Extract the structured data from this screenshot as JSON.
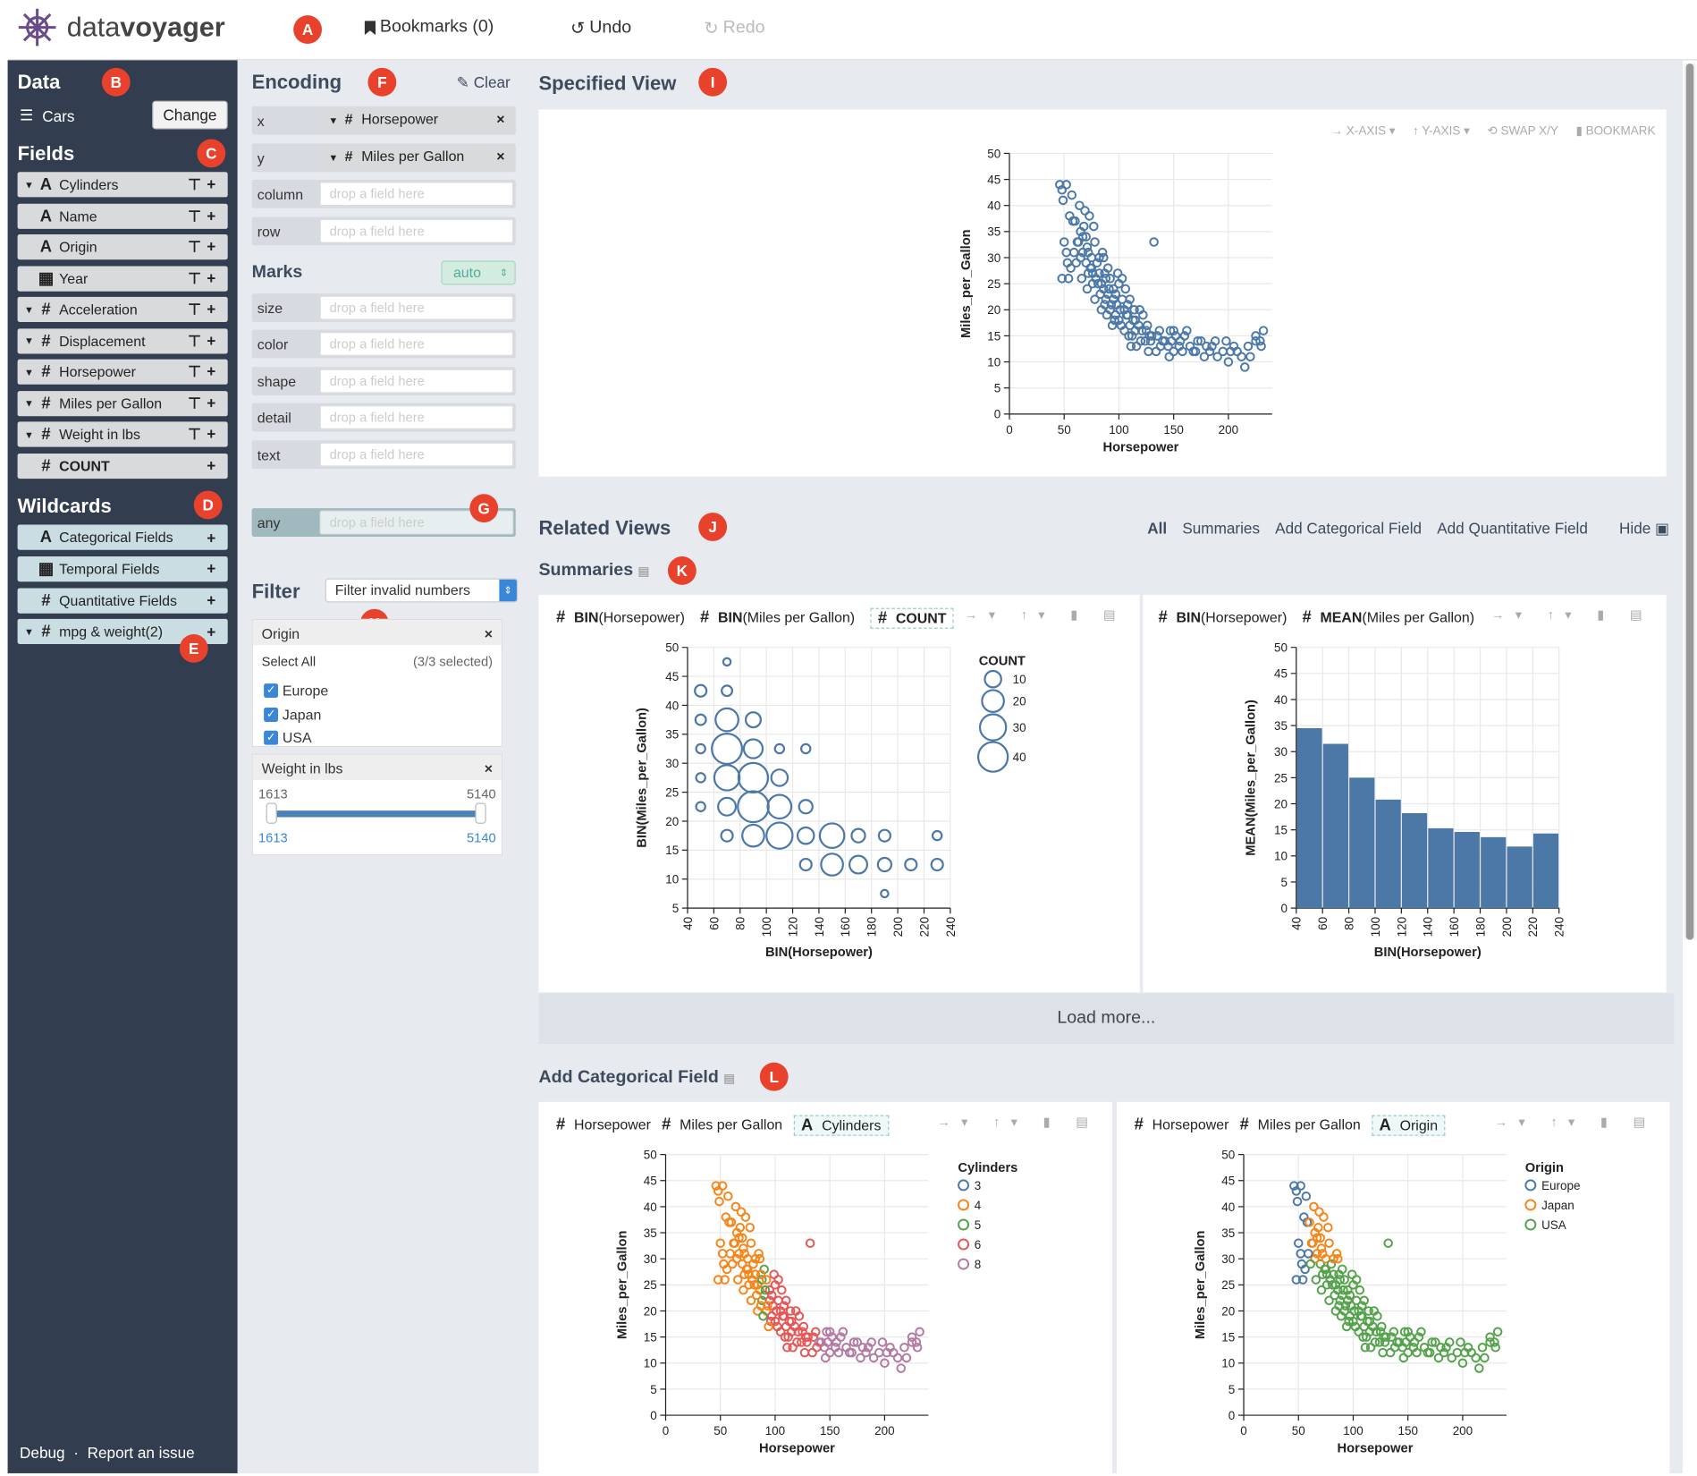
{
  "app": {
    "logo_prefix": "data",
    "logo_suffix": "voyager",
    "bookmarks": "Bookmarks (0)",
    "undo": "Undo",
    "redo": "Redo"
  },
  "badges": {
    "A": "A",
    "B": "B",
    "C": "C",
    "D": "D",
    "E": "E",
    "F": "F",
    "G": "G",
    "H": "H",
    "I": "I",
    "J": "J",
    "K": "K",
    "L": "L"
  },
  "data_panel": {
    "title": "Data",
    "dataset": "Cars",
    "change": "Change"
  },
  "fields_title": "Fields",
  "fields": [
    {
      "type": "A",
      "name": "Cylinders",
      "caret": true
    },
    {
      "type": "A",
      "name": "Name",
      "caret": false
    },
    {
      "type": "A",
      "name": "Origin",
      "caret": false
    },
    {
      "type": "cal",
      "name": "Year",
      "caret": false
    },
    {
      "type": "#",
      "name": "Acceleration",
      "caret": true
    },
    {
      "type": "#",
      "name": "Displacement",
      "caret": true
    },
    {
      "type": "#",
      "name": "Horsepower",
      "caret": true
    },
    {
      "type": "#",
      "name": "Miles per Gallon",
      "caret": true
    },
    {
      "type": "#",
      "name": "Weight in lbs",
      "caret": true
    },
    {
      "type": "#",
      "name": "COUNT",
      "caret": false
    }
  ],
  "wildcards_title": "Wildcards",
  "wildcards": [
    {
      "type": "A",
      "name": "Categorical Fields",
      "caret": false
    },
    {
      "type": "cal",
      "name": "Temporal Fields",
      "caret": false
    },
    {
      "type": "#",
      "name": "Quantitative Fields",
      "caret": false
    },
    {
      "type": "#",
      "name": "mpg & weight(2)",
      "caret": true
    }
  ],
  "footer": {
    "debug": "Debug",
    "sep": "·",
    "report": "Report an issue"
  },
  "encoding": {
    "title": "Encoding",
    "clear": "Clear",
    "shelves": [
      {
        "channel": "x",
        "field": "Horsepower",
        "type": "#"
      },
      {
        "channel": "y",
        "field": "Miles per Gallon",
        "type": "#"
      },
      {
        "channel": "column",
        "field": "",
        "placeholder": "drop a field here"
      },
      {
        "channel": "row",
        "field": "",
        "placeholder": "drop a field here"
      }
    ],
    "marks_title": "Marks",
    "mark_select": "auto",
    "mark_shelves": [
      {
        "channel": "size",
        "placeholder": "drop a field here"
      },
      {
        "channel": "color",
        "placeholder": "drop a field here"
      },
      {
        "channel": "shape",
        "placeholder": "drop a field here"
      },
      {
        "channel": "detail",
        "placeholder": "drop a field here"
      },
      {
        "channel": "text",
        "placeholder": "drop a field here"
      }
    ],
    "any": {
      "channel": "any",
      "placeholder": "drop a field here"
    }
  },
  "filter": {
    "title": "Filter",
    "select": "Filter invalid numbers",
    "origin": {
      "title": "Origin",
      "select_all": "Select All",
      "selected": "(3/3 selected)",
      "options": [
        "Europe",
        "Japan",
        "USA"
      ]
    },
    "weight": {
      "title": "Weight in lbs",
      "min": "1613",
      "max": "5140",
      "low": "1613",
      "high": "5140"
    }
  },
  "specified": {
    "title": "Specified View",
    "tools": {
      "x": "X-AXIS",
      "y": "Y-AXIS",
      "swap": "SWAP X/Y",
      "bookmark": "BOOKMARK"
    }
  },
  "related": {
    "title": "Related Views",
    "tabs": [
      "All",
      "Summaries",
      "Add Categorical Field",
      "Add Quantitative Field"
    ],
    "hide": "Hide"
  },
  "summaries": {
    "title": "Summaries",
    "load_more": "Load more...",
    "chart1_pills": [
      {
        "t": "#",
        "agg": "BIN",
        "f": "(Horsepower)"
      },
      {
        "t": "#",
        "agg": "BIN",
        "f": "(Miles per Gallon)"
      },
      {
        "t": "#",
        "agg": "COUNT",
        "f": ""
      }
    ],
    "chart2_pills": [
      {
        "t": "#",
        "agg": "BIN",
        "f": "(Horsepower)"
      },
      {
        "t": "#",
        "agg": "MEAN",
        "f": "(Miles per Gallon)"
      }
    ]
  },
  "addcat": {
    "title": "Add Categorical Field",
    "chart1_pills": [
      {
        "t": "#",
        "f": "Horsepower"
      },
      {
        "t": "#",
        "f": "Miles per Gallon"
      },
      {
        "t": "A",
        "f": "Cylinders"
      }
    ],
    "chart2_pills": [
      {
        "t": "#",
        "f": "Horsepower"
      },
      {
        "t": "#",
        "f": "Miles per Gallon"
      },
      {
        "t": "A",
        "f": "Origin"
      }
    ]
  },
  "colors": {
    "accent": "#4c78a8",
    "sidebar": "#333d50",
    "badge": "#e8412c",
    "c3": "#4c78a8",
    "c4": "#f58518",
    "c5": "#54a24b",
    "c6": "#e45756",
    "c8": "#b279a2"
  },
  "chart_data": [
    {
      "id": "specified",
      "type": "scatter",
      "xlabel": "Horsepower",
      "ylabel": "Miles_per_Gallon",
      "xlim": [
        0,
        240
      ],
      "ylim": [
        0,
        50
      ],
      "xticks": [
        0,
        50,
        100,
        150,
        200
      ],
      "yticks": [
        0,
        5,
        10,
        15,
        20,
        25,
        30,
        35,
        40,
        45,
        50
      ],
      "points": [
        [
          46,
          44
        ],
        [
          48,
          43
        ],
        [
          52,
          44
        ],
        [
          49,
          41
        ],
        [
          55,
          38
        ],
        [
          58,
          37
        ],
        [
          60,
          37
        ],
        [
          62,
          33
        ],
        [
          65,
          35
        ],
        [
          67,
          31
        ],
        [
          68,
          36
        ],
        [
          70,
          34
        ],
        [
          70,
          29
        ],
        [
          71,
          32
        ],
        [
          72,
          31
        ],
        [
          75,
          30
        ],
        [
          75,
          28
        ],
        [
          76,
          27
        ],
        [
          78,
          33
        ],
        [
          79,
          26
        ],
        [
          80,
          29
        ],
        [
          82,
          27
        ],
        [
          84,
          25
        ],
        [
          85,
          31
        ],
        [
          86,
          24
        ],
        [
          88,
          22
        ],
        [
          88,
          26
        ],
        [
          90,
          23
        ],
        [
          90,
          28
        ],
        [
          92,
          20
        ],
        [
          95,
          24
        ],
        [
          95,
          22
        ],
        [
          97,
          19
        ],
        [
          98,
          21
        ],
        [
          100,
          18
        ],
        [
          100,
          25
        ],
        [
          102,
          17
        ],
        [
          105,
          20
        ],
        [
          105,
          16
        ],
        [
          108,
          19
        ],
        [
          110,
          17
        ],
        [
          110,
          22
        ],
        [
          112,
          15
        ],
        [
          115,
          18
        ],
        [
          115,
          16
        ],
        [
          120,
          14
        ],
        [
          122,
          19
        ],
        [
          125,
          16
        ],
        [
          129,
          14
        ],
        [
          130,
          15
        ],
        [
          132,
          33
        ],
        [
          135,
          15
        ],
        [
          140,
          14
        ],
        [
          145,
          13
        ],
        [
          148,
          14
        ],
        [
          150,
          16
        ],
        [
          150,
          12
        ],
        [
          155,
          13
        ],
        [
          160,
          15
        ],
        [
          165,
          13
        ],
        [
          170,
          12
        ],
        [
          175,
          14
        ],
        [
          180,
          13
        ],
        [
          190,
          11
        ],
        [
          200,
          10
        ],
        [
          208,
          12
        ],
        [
          215,
          9
        ],
        [
          220,
          11
        ],
        [
          225,
          14
        ],
        [
          230,
          13
        ],
        [
          63,
          33
        ],
        [
          65,
          30
        ],
        [
          74,
          28
        ],
        [
          81,
          25
        ],
        [
          83,
          23
        ],
        [
          87,
          27
        ],
        [
          93,
          21
        ],
        [
          96,
          18
        ],
        [
          103,
          22
        ],
        [
          107,
          19
        ],
        [
          113,
          18
        ],
        [
          118,
          17
        ],
        [
          124,
          14
        ],
        [
          128,
          15
        ],
        [
          86,
          30
        ],
        [
          77,
          36
        ],
        [
          73,
          38
        ],
        [
          69,
          39
        ],
        [
          64,
          40
        ],
        [
          57,
          42
        ],
        [
          92,
          26
        ],
        [
          99,
          27
        ],
        [
          101,
          20
        ],
        [
          109,
          15
        ],
        [
          116,
          13
        ],
        [
          121,
          16
        ],
        [
          137,
          16
        ],
        [
          142,
          14
        ],
        [
          152,
          15
        ],
        [
          158,
          12
        ],
        [
          168,
          12
        ],
        [
          185,
          13
        ],
        [
          195,
          12
        ],
        [
          205,
          13
        ],
        [
          212,
          11
        ],
        [
          225,
          15
        ],
        [
          232,
          16
        ],
        [
          53,
          29
        ],
        [
          54,
          26
        ],
        [
          59,
          31
        ],
        [
          66,
          26
        ],
        [
          71,
          24
        ],
        [
          78,
          22
        ],
        [
          84,
          20
        ],
        [
          89,
          19
        ],
        [
          94,
          17
        ],
        [
          106,
          24
        ],
        [
          111,
          13
        ],
        [
          119,
          20
        ],
        [
          127,
          12
        ],
        [
          134,
          12
        ],
        [
          146,
          11
        ],
        [
          162,
          16
        ],
        [
          178,
          11
        ],
        [
          188,
          14
        ],
        [
          198,
          14
        ],
        [
          48,
          26
        ],
        [
          50,
          33
        ],
        [
          52,
          31
        ],
        [
          56,
          28
        ],
        [
          61,
          29
        ],
        [
          67,
          34
        ],
        [
          72,
          27
        ],
        [
          76,
          25
        ],
        [
          82,
          30
        ],
        [
          87,
          21
        ],
        [
          91,
          24
        ],
        [
          97,
          23
        ],
        [
          103,
          26
        ],
        [
          108,
          21
        ],
        [
          114,
          20
        ],
        [
          126,
          17
        ],
        [
          138,
          13
        ],
        [
          147,
          16
        ],
        [
          156,
          14
        ],
        [
          172,
          14
        ],
        [
          183,
          12
        ],
        [
          202,
          12
        ],
        [
          218,
          13
        ],
        [
          229,
          14
        ]
      ]
    },
    {
      "id": "bubble",
      "type": "scatter",
      "xlabel": "BIN(Horsepower)",
      "ylabel": "BIN(Miles_per_Gallon)",
      "size_label": "COUNT",
      "size_legend": [
        10,
        20,
        30,
        40
      ],
      "xticks": [
        40,
        60,
        80,
        100,
        120,
        140,
        160,
        180,
        200,
        220,
        240
      ],
      "yticks": [
        5,
        10,
        15,
        20,
        25,
        30,
        35,
        40,
        45,
        50
      ],
      "points": [
        [
          50,
          42.5,
          4
        ],
        [
          50,
          37.5,
          3
        ],
        [
          50,
          32.5,
          2
        ],
        [
          50,
          27.5,
          2
        ],
        [
          50,
          22.5,
          2
        ],
        [
          70,
          47.5,
          1
        ],
        [
          70,
          42.5,
          3
        ],
        [
          70,
          37.5,
          22
        ],
        [
          70,
          32.5,
          42
        ],
        [
          70,
          27.5,
          28
        ],
        [
          70,
          22.5,
          12
        ],
        [
          70,
          17.5,
          4
        ],
        [
          90,
          37.5,
          8
        ],
        [
          90,
          32.5,
          14
        ],
        [
          90,
          27.5,
          40
        ],
        [
          90,
          22.5,
          44
        ],
        [
          90,
          17.5,
          20
        ],
        [
          110,
          32.5,
          2
        ],
        [
          110,
          27.5,
          10
        ],
        [
          110,
          22.5,
          24
        ],
        [
          110,
          17.5,
          30
        ],
        [
          130,
          32.5,
          2
        ],
        [
          130,
          22.5,
          6
        ],
        [
          130,
          17.5,
          10
        ],
        [
          130,
          12.5,
          4
        ],
        [
          150,
          17.5,
          26
        ],
        [
          150,
          12.5,
          20
        ],
        [
          170,
          17.5,
          6
        ],
        [
          170,
          12.5,
          12
        ],
        [
          190,
          17.5,
          4
        ],
        [
          190,
          12.5,
          6
        ],
        [
          190,
          7.5,
          1
        ],
        [
          210,
          12.5,
          4
        ],
        [
          230,
          17.5,
          2
        ],
        [
          230,
          12.5,
          4
        ]
      ]
    },
    {
      "id": "bar",
      "type": "bar",
      "xlabel": "BIN(Horsepower)",
      "ylabel": "MEAN(Miles_per_Gallon)",
      "xticks": [
        40,
        60,
        80,
        100,
        120,
        140,
        160,
        180,
        200,
        220,
        240
      ],
      "yticks": [
        0,
        5,
        10,
        15,
        20,
        25,
        30,
        35,
        40,
        45,
        50
      ],
      "bins": [
        40,
        60,
        80,
        100,
        120,
        140,
        160,
        180,
        200,
        220
      ],
      "values": [
        34.5,
        31.5,
        25,
        20.8,
        18.2,
        15.3,
        14.6,
        13.6,
        11.8,
        14.3
      ]
    },
    {
      "id": "cyl",
      "type": "scatter",
      "xlabel": "Horsepower",
      "ylabel": "Miles_per_Gallon",
      "legend_title": "Cylinders",
      "legend": [
        "3",
        "4",
        "5",
        "6",
        "8"
      ]
    },
    {
      "id": "origin",
      "type": "scatter",
      "xlabel": "Horsepower",
      "ylabel": "Miles_per_Gallon",
      "legend_title": "Origin",
      "legend": [
        "Europe",
        "Japan",
        "USA"
      ]
    }
  ]
}
